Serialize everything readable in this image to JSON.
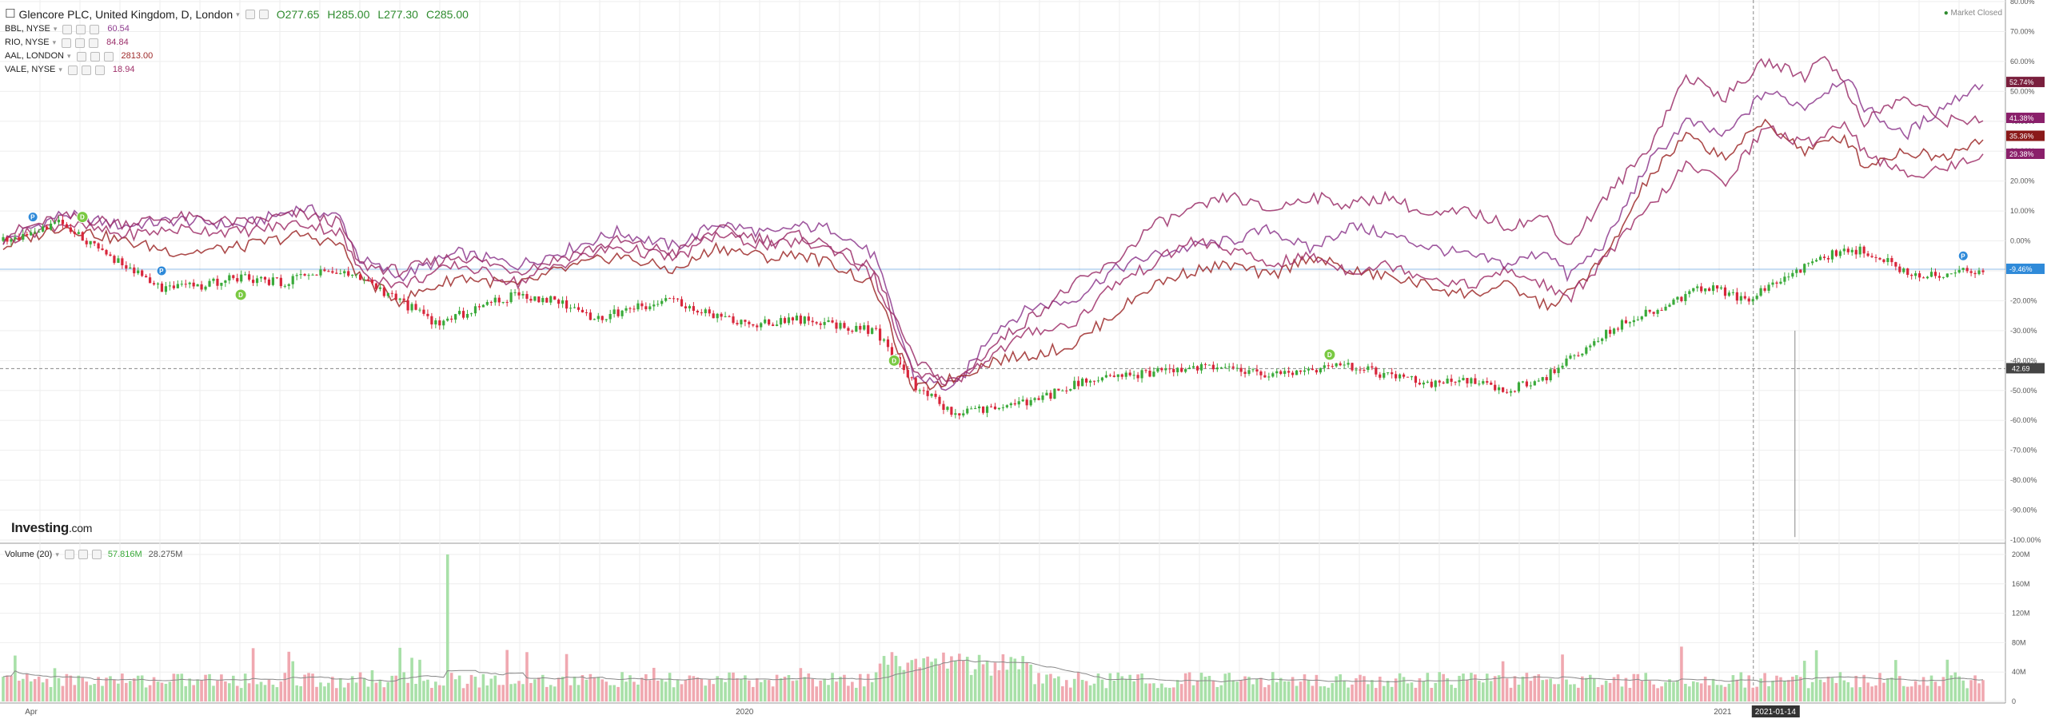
{
  "header": {
    "symbol": "Glencore PLC, United Kingdom, D, London",
    "open": "O277.65",
    "high": "H285.00",
    "low": "L277.30",
    "close": "C285.00"
  },
  "compare": [
    {
      "label": "BBL, NYSE",
      "value": "60.54",
      "color": "#8e3b8e"
    },
    {
      "label": "RIO, NYSE",
      "value": "84.84",
      "color": "#9b2f6a"
    },
    {
      "label": "AAL, LONDON",
      "value": "2813.00",
      "color": "#9e2a2a"
    },
    {
      "label": "VALE, NYSE",
      "value": "18.94",
      "color": "#a0306a"
    }
  ],
  "volume_legend": {
    "label": "Volume (20)",
    "value": "57.816M",
    "ma_value": "28.275M"
  },
  "market_status": "Market Closed",
  "logo": {
    "main": "Investing",
    "suffix": ".com"
  },
  "colors": {
    "up": "#3aaa3a",
    "down": "#d8263b",
    "vol_up": "#a8e0a8",
    "vol_down": "#f0a8b0",
    "grid": "#eeeeee",
    "baseline": "#4a90d9"
  },
  "chart_data": [
    {
      "type": "line",
      "title": "Glencore PLC, United Kingdom, D, London",
      "x_range": [
        "2019-03-26",
        "2021-03-29"
      ],
      "x_ticks": [
        "Apr",
        "2020",
        "2021",
        "2021-01-14"
      ],
      "y_unit": "percent",
      "ylim": [
        -100,
        80
      ],
      "y_ticks": [
        "80.00%",
        "70.00%",
        "60.00%",
        "50.00%",
        "40.00%",
        "30.00%",
        "20.00%",
        "10.00%",
        "0.00%",
        "-10.00%",
        "-20.00%",
        "-30.00%",
        "-40.00%",
        "-50.00%",
        "-60.00%",
        "-70.00%",
        "-80.00%",
        "-90.00%",
        "-100.00%"
      ],
      "grid": true,
      "series": [
        {
          "name": "BBL, NYSE",
          "color": "#8e3b8e",
          "last_label": "52.74%",
          "label_bg": "#7a1f3d",
          "points": [
            [
              0,
              0
            ],
            [
              0.03,
              9
            ],
            [
              0.06,
              5
            ],
            [
              0.09,
              7
            ],
            [
              0.12,
              5
            ],
            [
              0.15,
              11
            ],
            [
              0.17,
              8
            ],
            [
              0.18,
              -6
            ],
            [
              0.2,
              -12
            ],
            [
              0.23,
              -4
            ],
            [
              0.26,
              -8
            ],
            [
              0.28,
              -4
            ],
            [
              0.31,
              3
            ],
            [
              0.34,
              -2
            ],
            [
              0.36,
              6
            ],
            [
              0.39,
              2
            ],
            [
              0.4,
              5
            ],
            [
              0.42,
              4
            ],
            [
              0.44,
              -5
            ],
            [
              0.46,
              -45
            ],
            [
              0.48,
              -50
            ],
            [
              0.5,
              -30
            ],
            [
              0.52,
              -22
            ],
            [
              0.54,
              -20
            ],
            [
              0.56,
              -10
            ],
            [
              0.58,
              -5
            ],
            [
              0.6,
              -2
            ],
            [
              0.62,
              0
            ],
            [
              0.64,
              4
            ],
            [
              0.66,
              -3
            ],
            [
              0.68,
              5
            ],
            [
              0.7,
              2
            ],
            [
              0.72,
              -2
            ],
            [
              0.74,
              -5
            ],
            [
              0.76,
              -8
            ],
            [
              0.78,
              -3
            ],
            [
              0.79,
              -12
            ],
            [
              0.81,
              0
            ],
            [
              0.83,
              25
            ],
            [
              0.85,
              40
            ],
            [
              0.87,
              35
            ],
            [
              0.89,
              50
            ],
            [
              0.91,
              45
            ],
            [
              0.93,
              55
            ],
            [
              0.94,
              45
            ],
            [
              0.96,
              35
            ],
            [
              0.98,
              45
            ],
            [
              1,
              53
            ]
          ]
        },
        {
          "name": "RIO, NYSE",
          "color": "#9b2f6a",
          "last_label": "41.38%",
          "label_bg": "#8a1f6a",
          "points": [
            [
              0,
              2
            ],
            [
              0.03,
              8
            ],
            [
              0.06,
              6
            ],
            [
              0.09,
              8
            ],
            [
              0.12,
              6
            ],
            [
              0.15,
              9
            ],
            [
              0.17,
              6
            ],
            [
              0.18,
              -8
            ],
            [
              0.2,
              -10
            ],
            [
              0.23,
              -5
            ],
            [
              0.26,
              -10
            ],
            [
              0.28,
              -6
            ],
            [
              0.31,
              0
            ],
            [
              0.34,
              -4
            ],
            [
              0.36,
              4
            ],
            [
              0.39,
              0
            ],
            [
              0.4,
              2
            ],
            [
              0.42,
              -2
            ],
            [
              0.44,
              -10
            ],
            [
              0.46,
              -40
            ],
            [
              0.48,
              -48
            ],
            [
              0.5,
              -35
            ],
            [
              0.52,
              -25
            ],
            [
              0.54,
              -15
            ],
            [
              0.56,
              -8
            ],
            [
              0.58,
              5
            ],
            [
              0.6,
              10
            ],
            [
              0.62,
              15
            ],
            [
              0.64,
              10
            ],
            [
              0.66,
              15
            ],
            [
              0.68,
              12
            ],
            [
              0.7,
              15
            ],
            [
              0.72,
              8
            ],
            [
              0.74,
              10
            ],
            [
              0.76,
              5
            ],
            [
              0.78,
              8
            ],
            [
              0.79,
              -2
            ],
            [
              0.81,
              15
            ],
            [
              0.83,
              30
            ],
            [
              0.85,
              55
            ],
            [
              0.87,
              48
            ],
            [
              0.89,
              60
            ],
            [
              0.91,
              55
            ],
            [
              0.92,
              63
            ],
            [
              0.94,
              40
            ],
            [
              0.96,
              48
            ],
            [
              0.98,
              40
            ],
            [
              1,
              41
            ]
          ]
        },
        {
          "name": "AAL, LONDON",
          "color": "#9e2a2a",
          "last_label": "35.36%",
          "label_bg": "#8a1a1a",
          "points": [
            [
              0,
              -2
            ],
            [
              0.03,
              5
            ],
            [
              0.06,
              0
            ],
            [
              0.09,
              -4
            ],
            [
              0.12,
              -2
            ],
            [
              0.15,
              2
            ],
            [
              0.17,
              -1
            ],
            [
              0.18,
              -12
            ],
            [
              0.2,
              -20
            ],
            [
              0.23,
              -12
            ],
            [
              0.26,
              -15
            ],
            [
              0.28,
              -10
            ],
            [
              0.31,
              -5
            ],
            [
              0.34,
              -10
            ],
            [
              0.36,
              -2
            ],
            [
              0.39,
              -6
            ],
            [
              0.4,
              -4
            ],
            [
              0.42,
              -8
            ],
            [
              0.44,
              -15
            ],
            [
              0.46,
              -50
            ],
            [
              0.48,
              -46
            ],
            [
              0.5,
              -40
            ],
            [
              0.52,
              -38
            ],
            [
              0.54,
              -35
            ],
            [
              0.56,
              -25
            ],
            [
              0.58,
              -15
            ],
            [
              0.6,
              -10
            ],
            [
              0.62,
              -8
            ],
            [
              0.64,
              -12
            ],
            [
              0.66,
              -5
            ],
            [
              0.68,
              -10
            ],
            [
              0.7,
              -12
            ],
            [
              0.72,
              -15
            ],
            [
              0.74,
              -18
            ],
            [
              0.76,
              -15
            ],
            [
              0.78,
              -22
            ],
            [
              0.79,
              -18
            ],
            [
              0.81,
              -5
            ],
            [
              0.83,
              20
            ],
            [
              0.85,
              35
            ],
            [
              0.87,
              28
            ],
            [
              0.89,
              40
            ],
            [
              0.91,
              30
            ],
            [
              0.93,
              35
            ],
            [
              0.94,
              25
            ],
            [
              0.96,
              30
            ],
            [
              0.98,
              28
            ],
            [
              1,
              35
            ]
          ]
        },
        {
          "name": "VALE, NYSE",
          "color": "#a0306a",
          "last_label": "29.38%",
          "label_bg": "#8a1f6a",
          "points": [
            [
              0,
              0
            ],
            [
              0.03,
              6
            ],
            [
              0.06,
              2
            ],
            [
              0.09,
              4
            ],
            [
              0.12,
              3
            ],
            [
              0.15,
              6
            ],
            [
              0.17,
              3
            ],
            [
              0.18,
              -10
            ],
            [
              0.2,
              -15
            ],
            [
              0.23,
              -8
            ],
            [
              0.26,
              -14
            ],
            [
              0.28,
              -8
            ],
            [
              0.31,
              -2
            ],
            [
              0.34,
              -6
            ],
            [
              0.36,
              2
            ],
            [
              0.39,
              -2
            ],
            [
              0.4,
              0
            ],
            [
              0.42,
              -3
            ],
            [
              0.44,
              -12
            ],
            [
              0.46,
              -45
            ],
            [
              0.48,
              -47
            ],
            [
              0.5,
              -38
            ],
            [
              0.52,
              -30
            ],
            [
              0.54,
              -28
            ],
            [
              0.56,
              -15
            ],
            [
              0.58,
              -8
            ],
            [
              0.6,
              0
            ],
            [
              0.62,
              -3
            ],
            [
              0.64,
              -8
            ],
            [
              0.66,
              -5
            ],
            [
              0.68,
              -10
            ],
            [
              0.7,
              -8
            ],
            [
              0.72,
              -12
            ],
            [
              0.74,
              -15
            ],
            [
              0.76,
              -10
            ],
            [
              0.78,
              -15
            ],
            [
              0.79,
              -20
            ],
            [
              0.81,
              -5
            ],
            [
              0.83,
              10
            ],
            [
              0.85,
              25
            ],
            [
              0.87,
              20
            ],
            [
              0.89,
              38
            ],
            [
              0.91,
              32
            ],
            [
              0.93,
              40
            ],
            [
              0.94,
              30
            ],
            [
              0.96,
              22
            ],
            [
              0.98,
              24
            ],
            [
              1,
              29
            ]
          ]
        }
      ],
      "main_series": {
        "name": "Glencore PLC",
        "last_label": "-9.46%",
        "price_label": "42.69",
        "points": [
          [
            0,
            0
          ],
          [
            0.03,
            6
          ],
          [
            0.06,
            -8
          ],
          [
            0.08,
            -16
          ],
          [
            0.1,
            -15
          ],
          [
            0.12,
            -12
          ],
          [
            0.14,
            -14
          ],
          [
            0.16,
            -10
          ],
          [
            0.18,
            -12
          ],
          [
            0.2,
            -20
          ],
          [
            0.22,
            -28
          ],
          [
            0.24,
            -22
          ],
          [
            0.26,
            -18
          ],
          [
            0.28,
            -20
          ],
          [
            0.3,
            -26
          ],
          [
            0.32,
            -22
          ],
          [
            0.34,
            -20
          ],
          [
            0.36,
            -25
          ],
          [
            0.38,
            -28
          ],
          [
            0.4,
            -26
          ],
          [
            0.42,
            -28
          ],
          [
            0.44,
            -30
          ],
          [
            0.46,
            -48
          ],
          [
            0.48,
            -58
          ],
          [
            0.5,
            -56
          ],
          [
            0.52,
            -54
          ],
          [
            0.54,
            -48
          ],
          [
            0.56,
            -46
          ],
          [
            0.58,
            -44
          ],
          [
            0.6,
            -42
          ],
          [
            0.62,
            -43
          ],
          [
            0.64,
            -45
          ],
          [
            0.66,
            -43
          ],
          [
            0.68,
            -42
          ],
          [
            0.7,
            -45
          ],
          [
            0.72,
            -48
          ],
          [
            0.74,
            -47
          ],
          [
            0.76,
            -50
          ],
          [
            0.78,
            -45
          ],
          [
            0.8,
            -36
          ],
          [
            0.82,
            -26
          ],
          [
            0.84,
            -22
          ],
          [
            0.86,
            -15
          ],
          [
            0.88,
            -20
          ],
          [
            0.9,
            -12
          ],
          [
            0.92,
            -5
          ],
          [
            0.94,
            -3
          ],
          [
            0.96,
            -10
          ],
          [
            0.98,
            -12
          ],
          [
            1,
            -9
          ]
        ]
      },
      "baseline": -9.46,
      "dashed_level": -42.69,
      "events": [
        {
          "type": "D",
          "x": 0.04,
          "y": 8
        },
        {
          "type": "P",
          "x": 0.015,
          "y": 8
        },
        {
          "type": "P",
          "x": 0.08,
          "y": -10
        },
        {
          "type": "D",
          "x": 0.12,
          "y": -18
        },
        {
          "type": "D",
          "x": 0.45,
          "y": -40
        },
        {
          "type": "D",
          "x": 0.67,
          "y": -38
        },
        {
          "type": "P",
          "x": 0.99,
          "y": -5
        }
      ]
    },
    {
      "type": "bar",
      "title": "Volume (20)",
      "ylim": [
        0,
        200000000
      ],
      "y_ticks": [
        "200M",
        "160M",
        "120M",
        "80M",
        "40M",
        "0"
      ],
      "last_value": "57.816M",
      "ma_value": "28.275M"
    }
  ]
}
